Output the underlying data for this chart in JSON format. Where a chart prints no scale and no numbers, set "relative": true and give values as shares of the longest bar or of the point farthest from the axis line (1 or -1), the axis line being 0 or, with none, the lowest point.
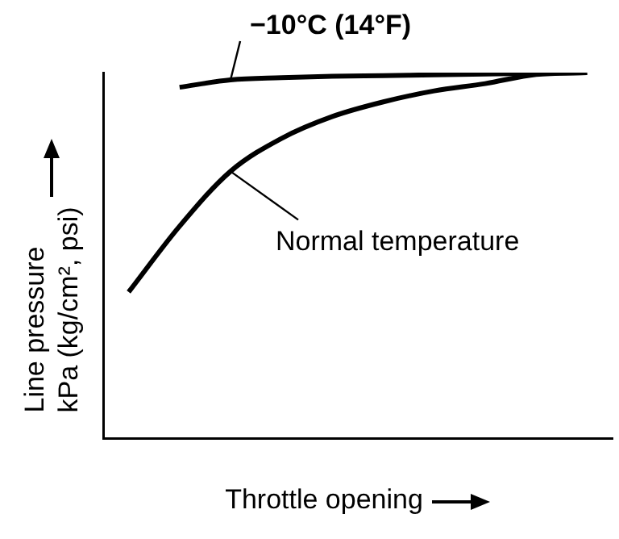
{
  "chart_data": {
    "type": "line",
    "relative": true,
    "xlabel": "Throttle opening",
    "ylabel": "Line pressure\nkPa (kg/cm², psi)",
    "grid": false,
    "legend": false,
    "marker": "none",
    "line_style": "solid",
    "categories": [
      null,
      null,
      null,
      null,
      null,
      null,
      null,
      null,
      null,
      null
    ],
    "series": [
      {
        "color": "#000000",
        "values": [
          null,
          0.96,
          0.98,
          0.986,
          0.99,
          0.992,
          0.994,
          0.996,
          0.998,
          1
        ]
      },
      {
        "color": "#000000",
        "values": [
          0.4,
          0.58,
          0.73,
          0.82,
          0.88,
          0.92,
          0.95,
          0.97,
          0.995,
          1
        ]
      }
    ],
    "annotations": [
      "−10°C (14°F)",
      "Normal temperature"
    ]
  }
}
